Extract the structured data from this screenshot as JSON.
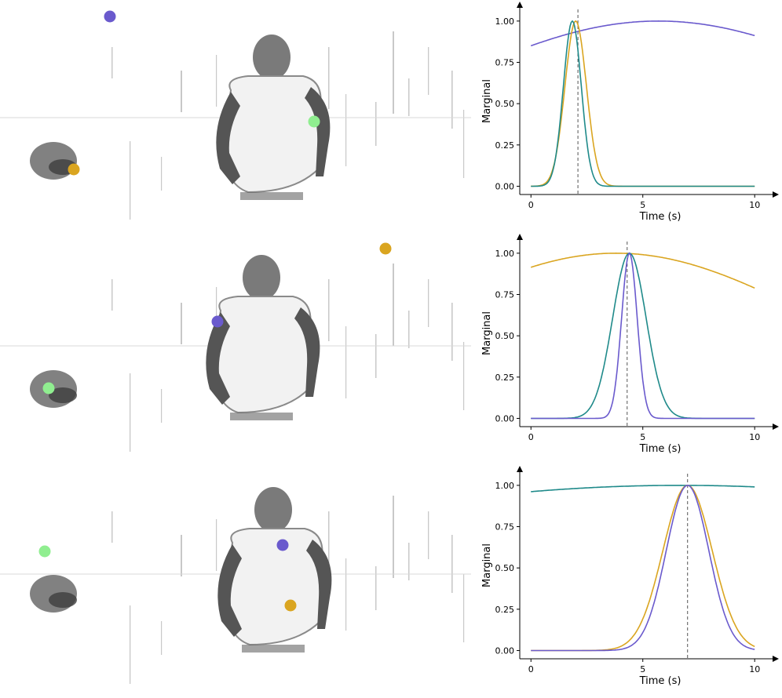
{
  "colors": {
    "purple": "#6a5acd",
    "gold": "#daa520",
    "teal": "#1f8a8a",
    "green": "#90ee90",
    "axis": "#000000",
    "dashed": "#555555",
    "scene_bg": "#ffffff",
    "figure_fill": "#8a8a8a"
  },
  "chart_data": [
    {
      "type": "line",
      "xlabel": "Time (s)",
      "ylabel": "Marginal",
      "xlim": [
        -0.5,
        10.8
      ],
      "ylim": [
        -0.05,
        1.08
      ],
      "xticks": [
        0,
        5,
        10
      ],
      "yticks": [
        "0.00",
        "0.25",
        "0.50",
        "0.75",
        "1.00"
      ],
      "vline_x": 2.1,
      "series": [
        {
          "color": "purple",
          "mu": 5.7,
          "sigma": 10.0
        },
        {
          "color": "gold",
          "mu": 2.0,
          "sigma": 0.48
        },
        {
          "color": "teal",
          "mu": 1.85,
          "sigma": 0.4
        }
      ],
      "points": [
        {
          "color": "purple",
          "x": 140,
          "y": 21
        },
        {
          "color": "gold",
          "x": 94,
          "y": 216
        },
        {
          "color": "green",
          "x": 400,
          "y": 155
        }
      ]
    },
    {
      "type": "line",
      "xlabel": "Time (s)",
      "ylabel": "Marginal",
      "xlim": [
        -0.5,
        10.8
      ],
      "ylim": [
        -0.05,
        1.08
      ],
      "xticks": [
        0,
        5,
        10
      ],
      "yticks": [
        "0.00",
        "0.25",
        "0.50",
        "0.75",
        "1.00"
      ],
      "vline_x": 4.3,
      "series": [
        {
          "color": "gold",
          "mu": 3.8,
          "sigma": 9.0
        },
        {
          "color": "teal",
          "mu": 4.4,
          "sigma": 0.75
        },
        {
          "color": "purple",
          "mu": 4.4,
          "sigma": 0.35
        }
      ],
      "points": [
        {
          "color": "gold",
          "x": 491,
          "y": 21
        },
        {
          "color": "purple",
          "x": 277,
          "y": 114
        },
        {
          "color": "green",
          "x": 62,
          "y": 199
        }
      ]
    },
    {
      "type": "line",
      "xlabel": "Time (s)",
      "ylabel": "Marginal",
      "xlim": [
        -0.5,
        10.8
      ],
      "ylim": [
        -0.05,
        1.08
      ],
      "xticks": [
        0,
        5,
        10
      ],
      "yticks": [
        "0.00",
        "0.25",
        "0.50",
        "0.75",
        "1.00"
      ],
      "vline_x": 7.0,
      "series": [
        {
          "color": "teal",
          "mu": 6.7,
          "sigma": 24.0
        },
        {
          "color": "gold",
          "mu": 7.0,
          "sigma": 1.1
        },
        {
          "color": "purple",
          "mu": 7.0,
          "sigma": 0.95
        }
      ],
      "points": [
        {
          "color": "green",
          "x": 57,
          "y": 111
        },
        {
          "color": "purple",
          "x": 360,
          "y": 103
        },
        {
          "color": "gold",
          "x": 370,
          "y": 180
        }
      ]
    }
  ]
}
